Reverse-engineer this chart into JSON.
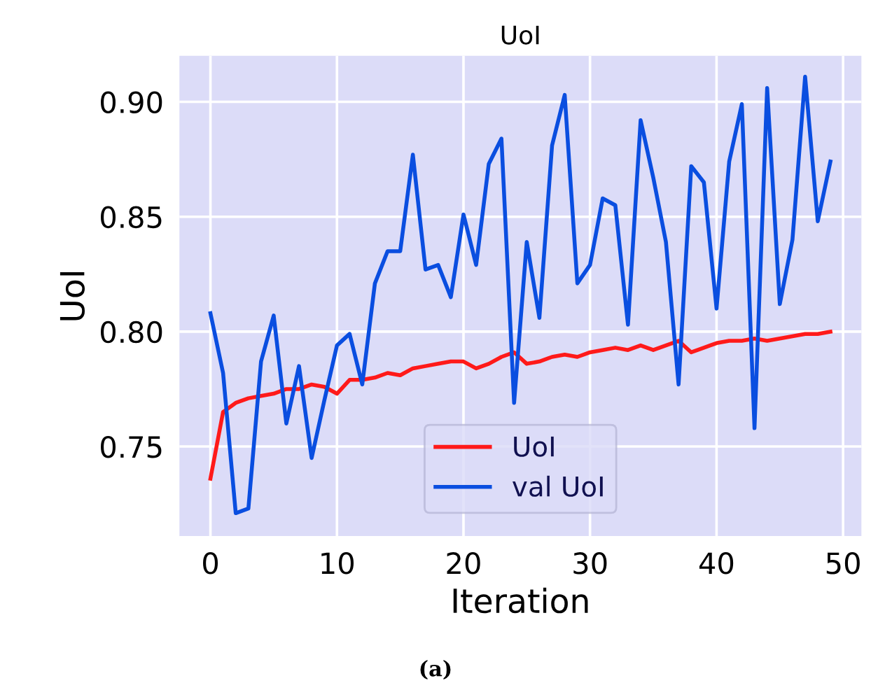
{
  "chart_data": {
    "type": "line",
    "title": "UoI",
    "xlabel": "Iteration",
    "ylabel": "UoI",
    "x": [
      0,
      1,
      2,
      3,
      4,
      5,
      6,
      7,
      8,
      9,
      10,
      11,
      12,
      13,
      14,
      15,
      16,
      17,
      18,
      19,
      20,
      21,
      22,
      23,
      24,
      25,
      26,
      27,
      28,
      29,
      30,
      31,
      32,
      33,
      34,
      35,
      36,
      37,
      38,
      39,
      40,
      41,
      42,
      43,
      44,
      45,
      46,
      47,
      48,
      49
    ],
    "series": [
      {
        "name": "UoI",
        "color": "#ff1a1a",
        "values": [
          0.736,
          0.765,
          0.769,
          0.771,
          0.772,
          0.773,
          0.775,
          0.775,
          0.777,
          0.776,
          0.773,
          0.779,
          0.779,
          0.78,
          0.782,
          0.781,
          0.784,
          0.785,
          0.786,
          0.787,
          0.787,
          0.784,
          0.786,
          0.789,
          0.791,
          0.786,
          0.787,
          0.789,
          0.79,
          0.789,
          0.791,
          0.792,
          0.793,
          0.792,
          0.794,
          0.792,
          0.794,
          0.796,
          0.791,
          0.793,
          0.795,
          0.796,
          0.796,
          0.797,
          0.796,
          0.797,
          0.798,
          0.799,
          0.799,
          0.8
        ]
      },
      {
        "name": "val UoI",
        "color": "#0a4ee0",
        "values": [
          0.808,
          0.782,
          0.721,
          0.723,
          0.787,
          0.807,
          0.76,
          0.785,
          0.745,
          0.77,
          0.794,
          0.799,
          0.777,
          0.821,
          0.835,
          0.835,
          0.877,
          0.827,
          0.829,
          0.815,
          0.851,
          0.829,
          0.873,
          0.884,
          0.769,
          0.839,
          0.806,
          0.881,
          0.903,
          0.821,
          0.829,
          0.858,
          0.855,
          0.803,
          0.892,
          0.867,
          0.839,
          0.777,
          0.872,
          0.865,
          0.81,
          0.874,
          0.899,
          0.758,
          0.906,
          0.812,
          0.84,
          0.911,
          0.848,
          0.874
        ]
      }
    ],
    "xlim": [
      -2.45,
      51.45
    ],
    "ylim": [
      0.711,
      0.92
    ],
    "xticks": [
      0,
      10,
      20,
      30,
      40,
      50
    ],
    "yticks": [
      {
        "value": 0.75,
        "label": "0.75"
      },
      {
        "value": 0.8,
        "label": "0.80"
      },
      {
        "value": 0.85,
        "label": "0.85"
      },
      {
        "value": 0.9,
        "label": "0.90"
      }
    ],
    "grid": true,
    "legend": "bottom",
    "marker": "none",
    "line_style": "solid",
    "annotations": [
      "(a)"
    ]
  }
}
